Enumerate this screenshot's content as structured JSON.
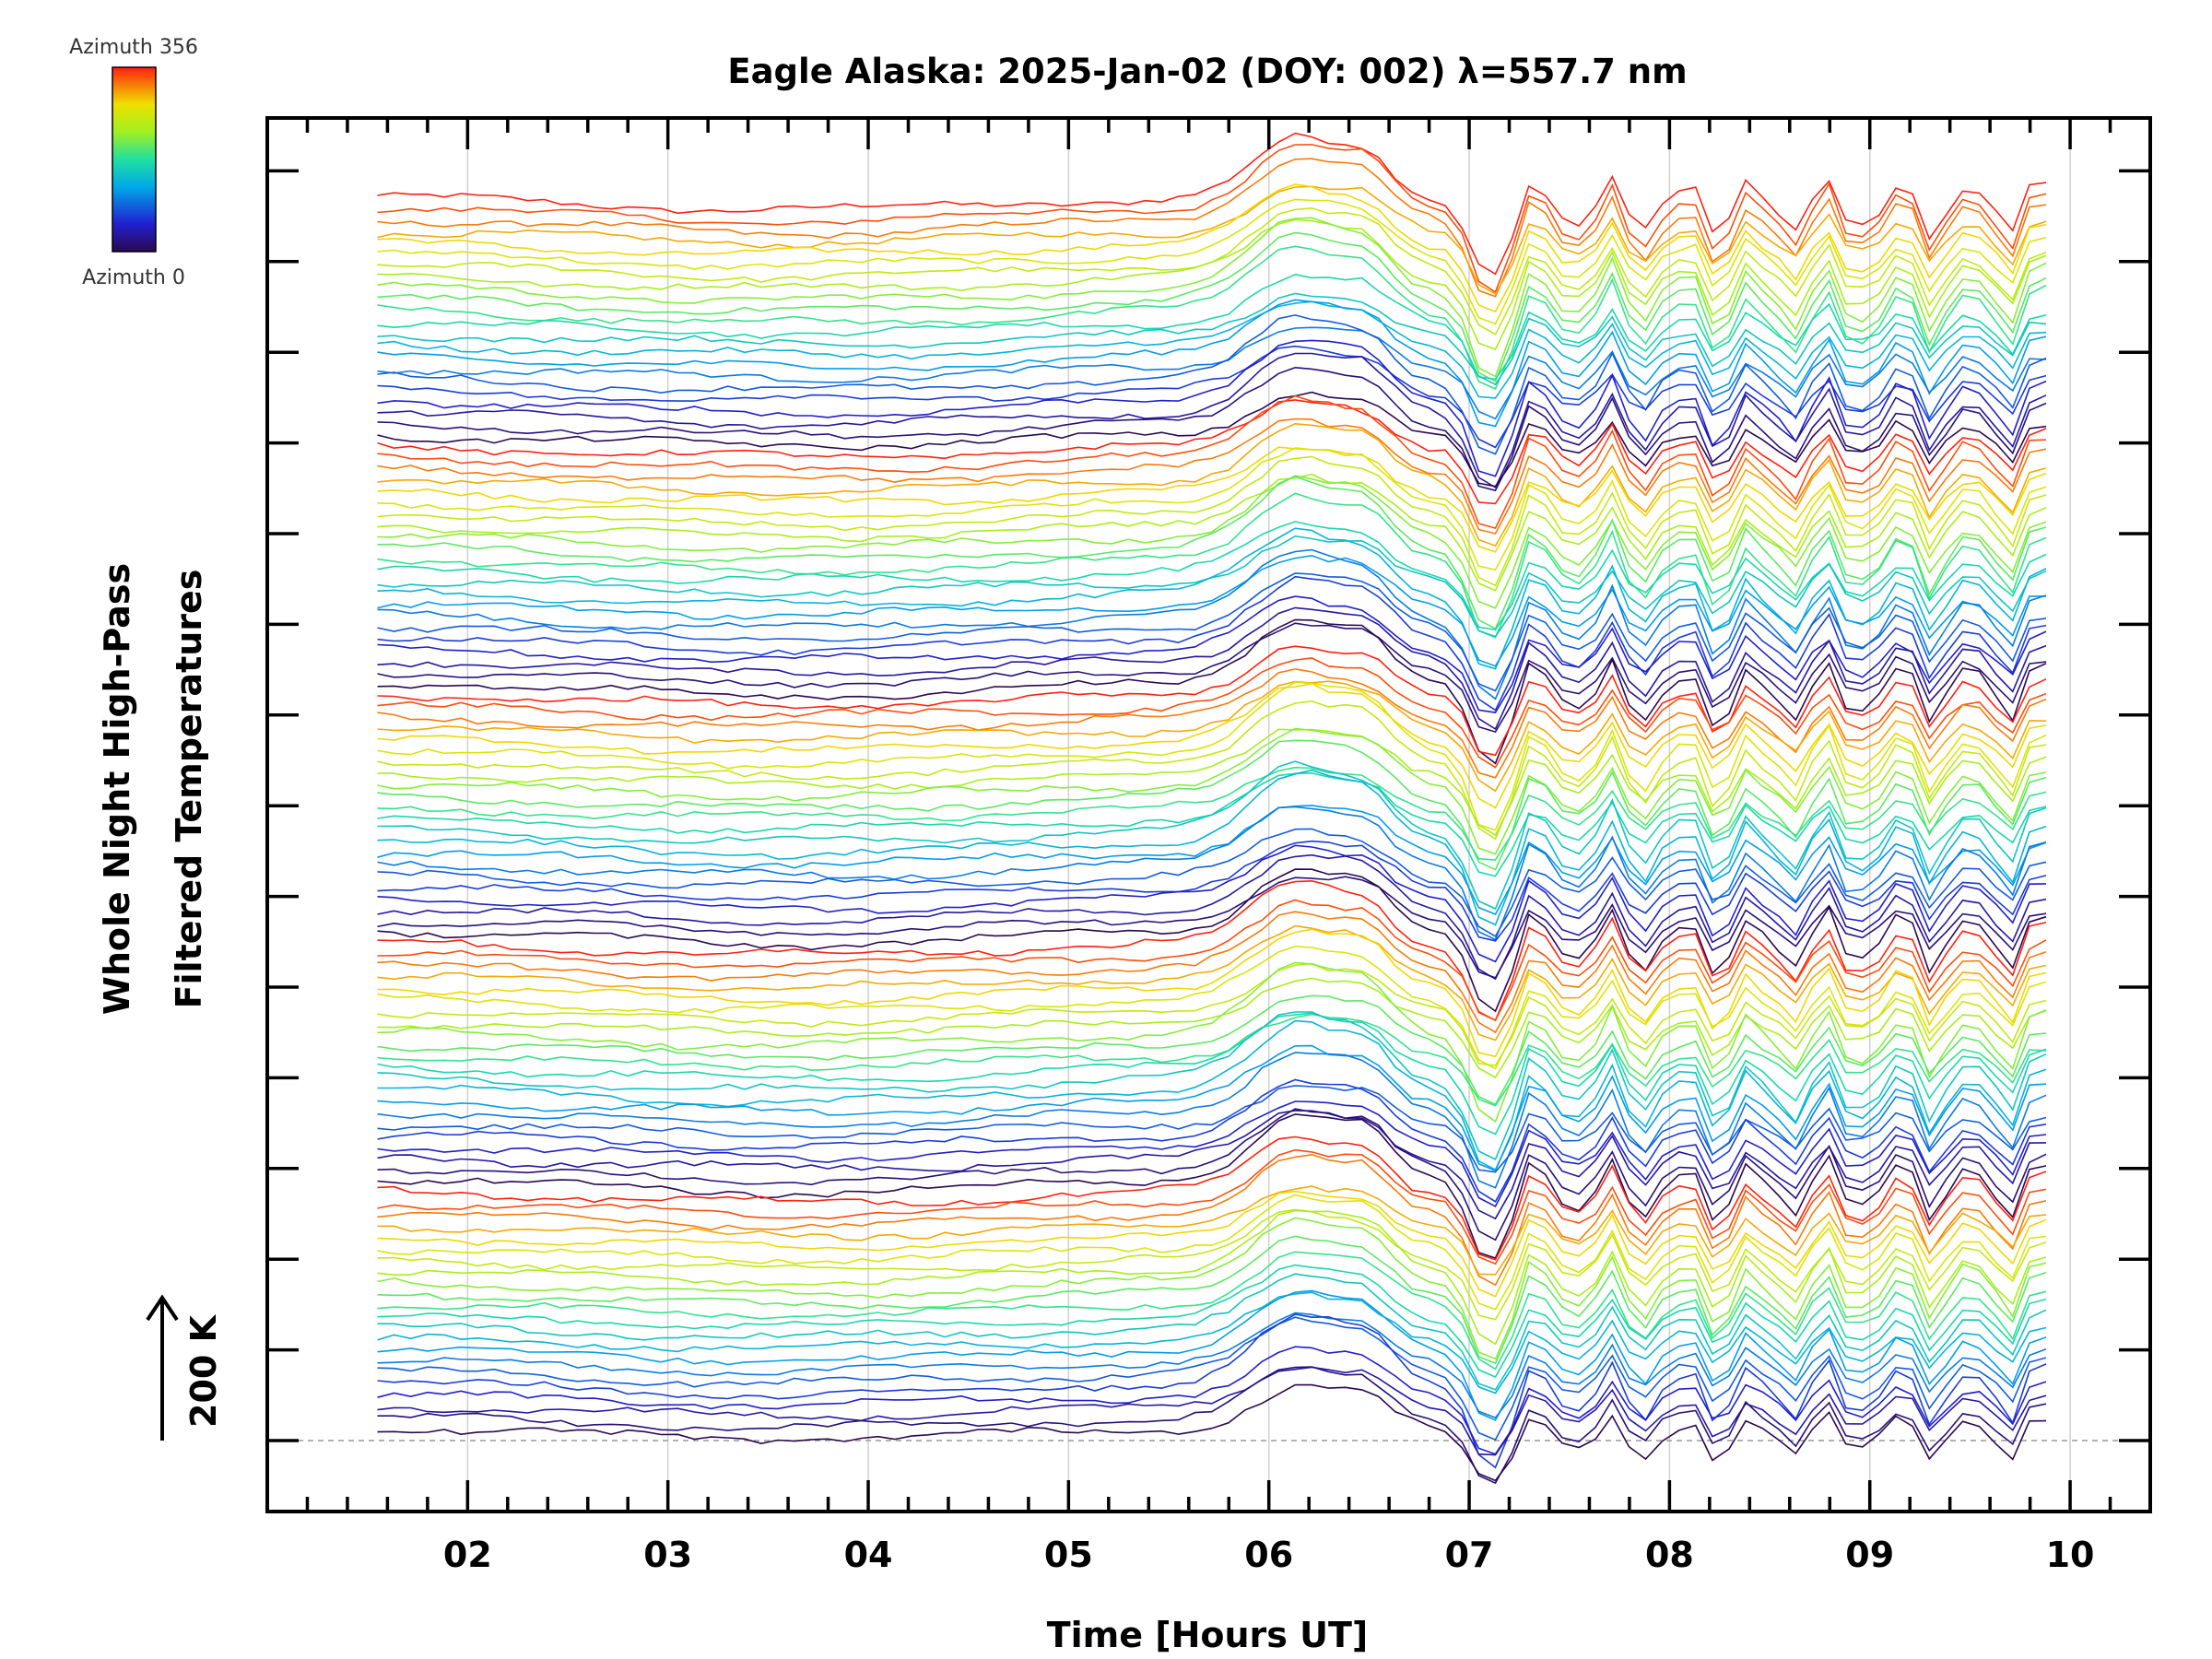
{
  "chart_data": {
    "type": "line",
    "title": "Eagle Alaska: 2025-Jan-02 (DOY: 002) λ=557.7 nm",
    "xlabel": "Time [Hours UT]",
    "ylabel": [
      "Whole Night High-Pass",
      "Filtered Temperatures"
    ],
    "scale_bar_label": "200 K",
    "xlim": [
      1.0,
      10.4
    ],
    "x_ticks": [
      2,
      3,
      4,
      5,
      6,
      7,
      8,
      9,
      10
    ],
    "x_tick_labels": [
      "02",
      "03",
      "04",
      "05",
      "06",
      "07",
      "08",
      "09",
      "10"
    ],
    "x_range_data": [
      1.55,
      9.9
    ],
    "grid": "vertical dotted lines at each hour",
    "colorbar": {
      "label_top": "Azimuth 356",
      "label_bottom": "Azimuth 0",
      "colormap": "rainbow (dark blue to red)"
    },
    "series_description": "Stacked high-pass filtered temperature traces, one per azimuth, colored by azimuth and offset vertically; traces are quiet from 01:33 to about 05:45 UT, show a broad rise near 06:00-06:30 UT, a sharp drop near 07:00 UT, then strong oscillations until 09:54 UT.",
    "colors": {
      "axes": "#000000",
      "grid": "#cccccc",
      "baseline": "#999999"
    }
  }
}
